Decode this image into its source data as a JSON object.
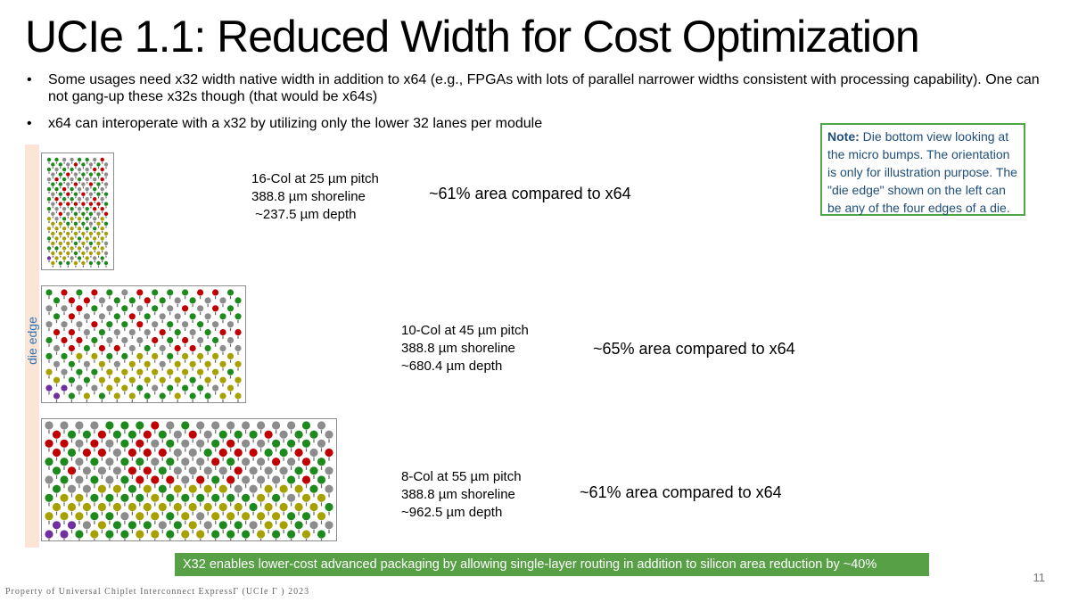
{
  "slide": {
    "title": "UCIe 1.1: Reduced Width for Cost Optimization",
    "bullets": [
      "Some usages need x32 width native width in addition to x64 (e.g., FPGAs with lots of parallel narrower widths consistent with processing capability). One can not gang-up these x32s though (that would be x64s)",
      "x64 can interoperate with a x32 by utilizing only the lower 32 lanes per module"
    ],
    "die_edge_label": "die edge",
    "configs": [
      {
        "spec": [
          "16-Col at 25 µm pitch",
          "388.8 µm shoreline",
          " ~237.5 µm depth"
        ],
        "area": "~61% area compared to x64"
      },
      {
        "spec": [
          "10-Col at 45 µm pitch",
          "388.8 µm shoreline",
          "~680.4 µm depth"
        ],
        "area": "~65% area compared to x64"
      },
      {
        "spec": [
          "8-Col at 55 µm pitch",
          "388.8 µm shoreline",
          "~962.5 µm depth"
        ],
        "area": "~61% area compared to x64"
      }
    ],
    "note": {
      "label": "Note:",
      "text": " Die bottom view looking at the micro bumps. The orientation is only for illustration purpose. The \"die edge\" shown on the left can be any of the four edges of a die."
    },
    "banner": "X32 enables lower-cost advanced packaging by allowing  single-layer routing in addition to silicon area reduction by ~40%",
    "page_number": "11",
    "footer": "Property of Universal Chiplet Interconnect ExpressΓ (UCIe Γ ) 2023"
  },
  "colors": {
    "red": "#c00000",
    "gray": "#8c8c8c",
    "green": "#1e8a1e",
    "olive": "#a6a000",
    "purple": "#7030a0",
    "die_edge_bar": "#fbe5d6",
    "die_edge_text": "#2e74b5",
    "note_border": "#4ea646",
    "banner": "#58a046"
  }
}
